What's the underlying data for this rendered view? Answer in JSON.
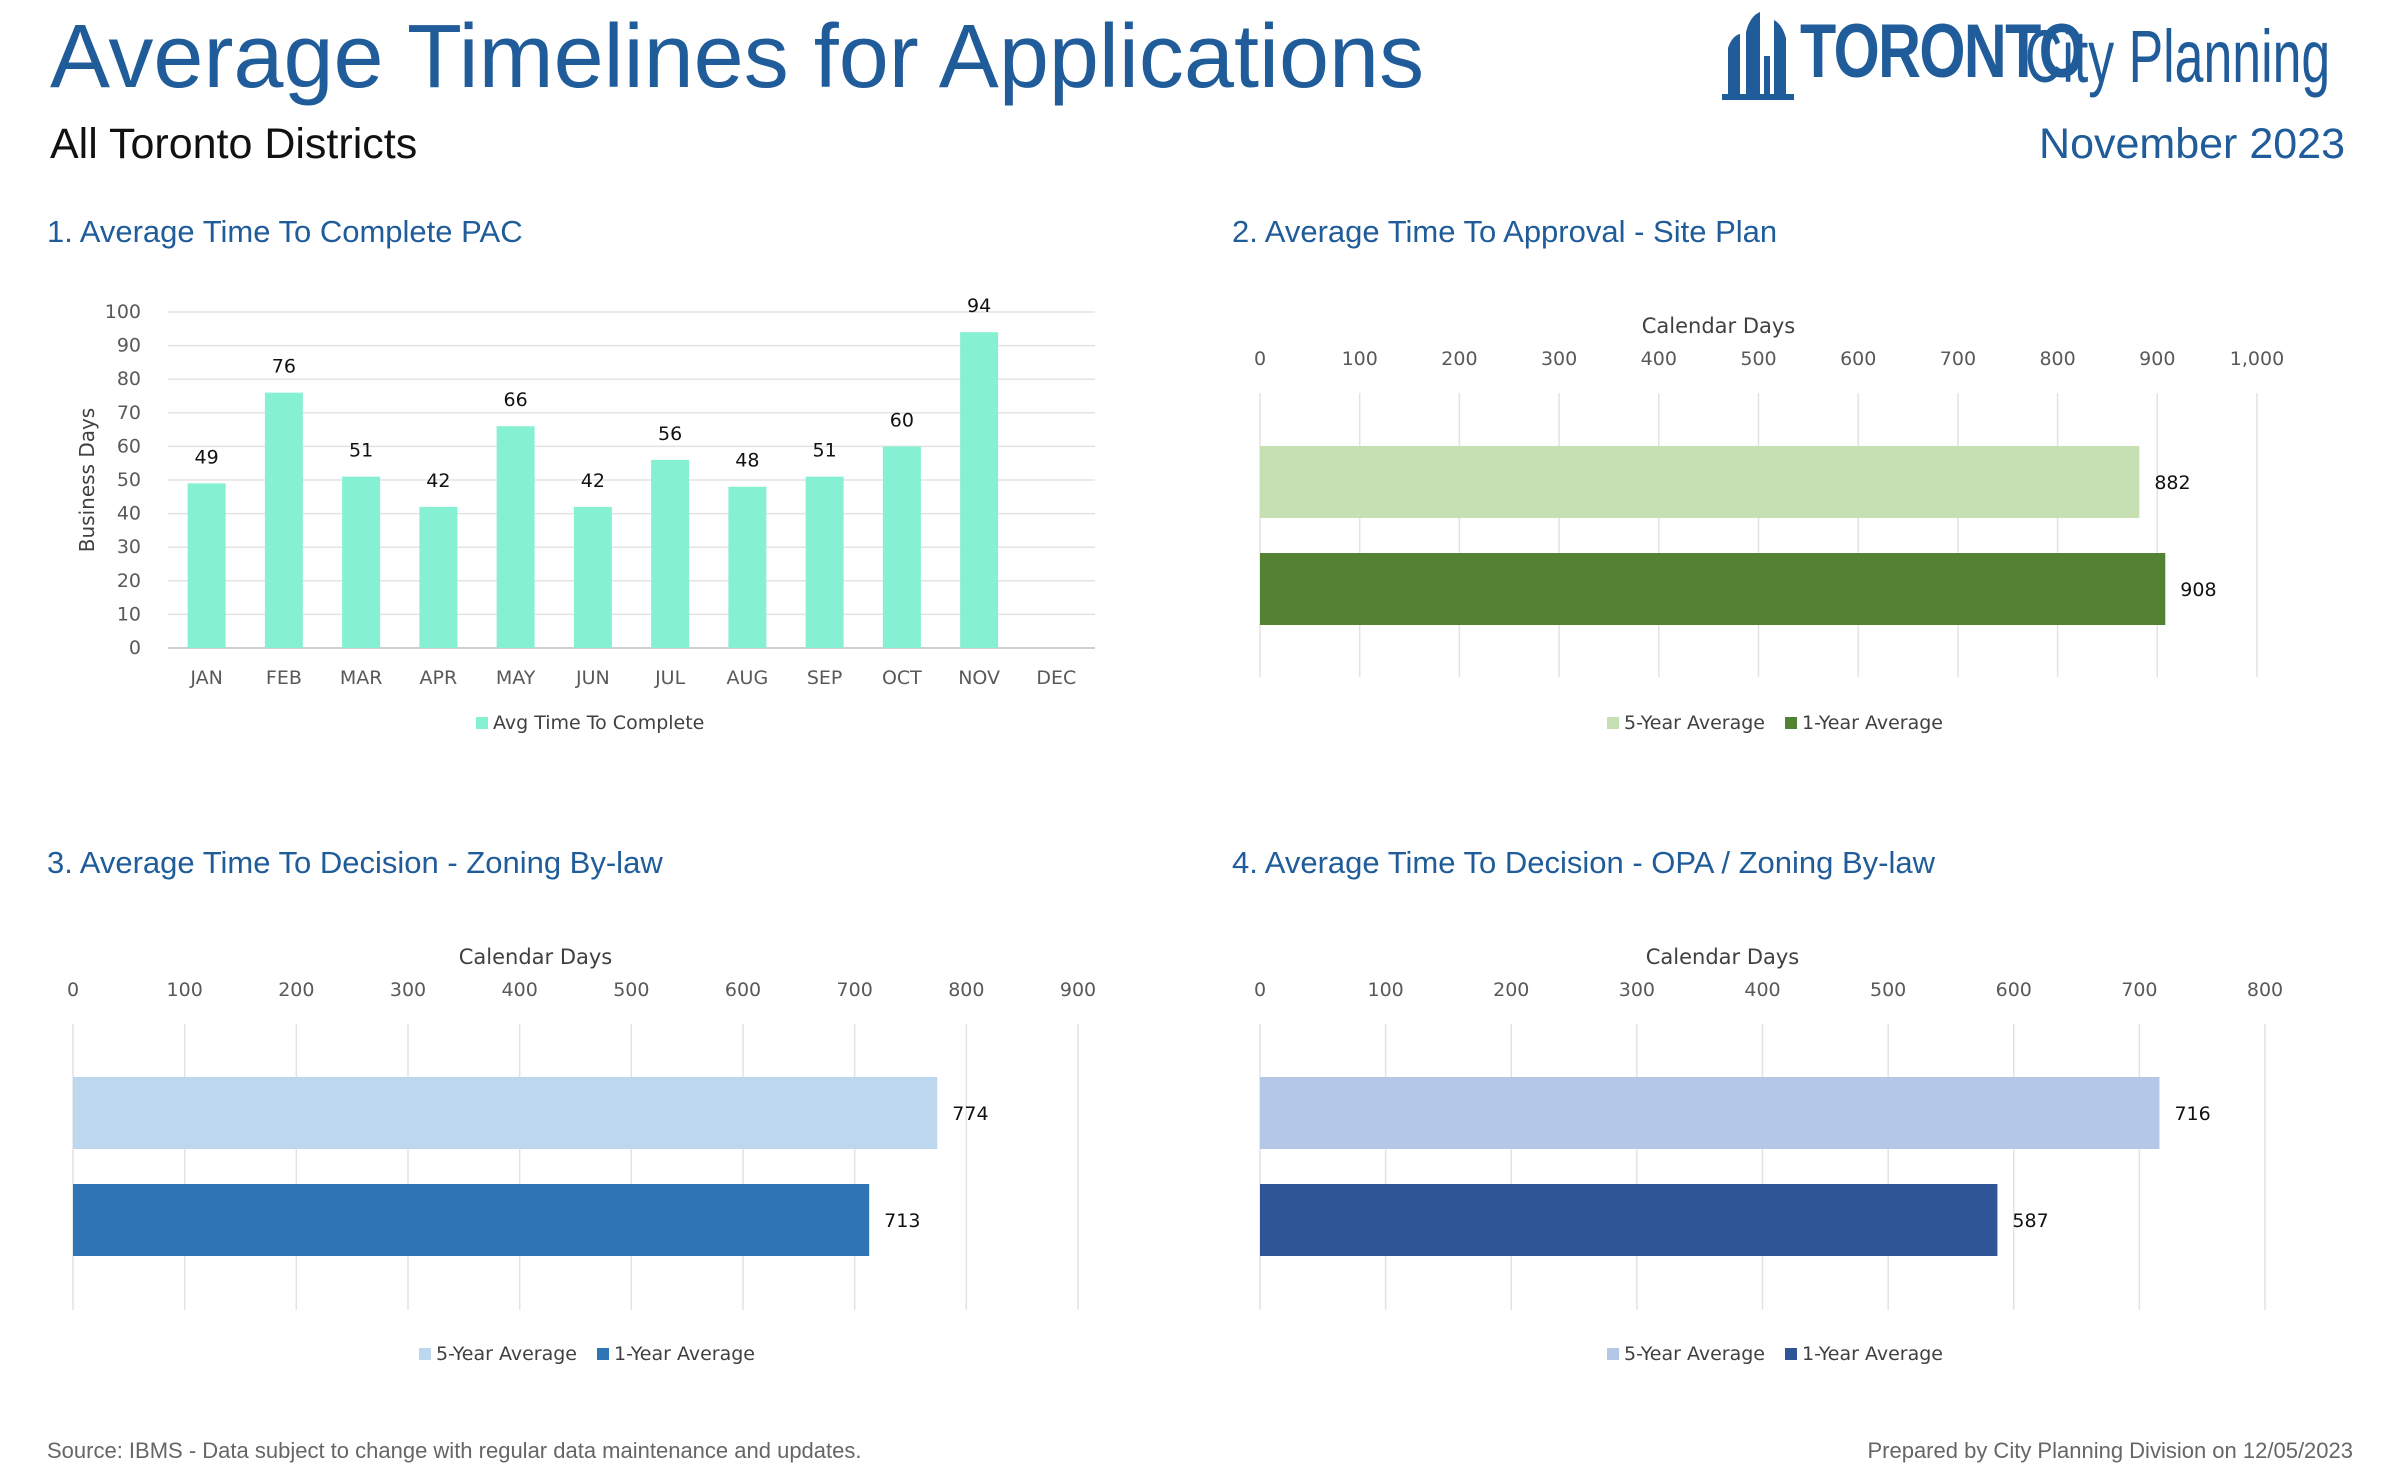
{
  "header": {
    "title": "Average Timelines for Applications",
    "subtitle": "All Toronto Districts",
    "date": "November 2023",
    "logo_name": "TORONTO",
    "logo_dept": "City Planning"
  },
  "colors": {
    "title_blue": "#1f5c99",
    "pac_bar": "#86f0d2",
    "site_5yr": "#c6e0b4",
    "site_1yr": "#548235",
    "zbl_5yr": "#bdd7ee",
    "zbl_1yr": "#2e75b6",
    "opa_5yr": "#b4c7e7",
    "opa_1yr": "#2f5597"
  },
  "footer": {
    "source": "Source: IBMS - Data subject to change with regular data maintenance and updates.",
    "prepared": "Prepared by City Planning Division on 12/05/2023"
  },
  "chart_data": [
    {
      "type": "bar",
      "title": "1. Average Time To Complete PAC",
      "categories": [
        "JAN",
        "FEB",
        "MAR",
        "APR",
        "MAY",
        "JUN",
        "JUL",
        "AUG",
        "SEP",
        "OCT",
        "NOV",
        "DEC"
      ],
      "series": [
        {
          "name": "Avg Time To Complete",
          "values": [
            49,
            76,
            51,
            42,
            66,
            42,
            56,
            48,
            51,
            60,
            94,
            null
          ]
        }
      ],
      "xlabel": "",
      "ylabel": "Business Days",
      "ylim": [
        0,
        100
      ],
      "yticks": [
        "0",
        "10",
        "20",
        "30",
        "40",
        "50",
        "60",
        "70",
        "80",
        "90",
        "100"
      ],
      "grid": true,
      "legend": "bottom"
    },
    {
      "type": "bar",
      "orientation": "horizontal",
      "title": "2. Average Time To Approval - Site Plan",
      "categories": [
        "5-Year Average",
        "1-Year Average"
      ],
      "values": [
        882,
        908
      ],
      "xlabel": "Calendar Days",
      "xlim": [
        0,
        1000
      ],
      "xticks": [
        "0",
        "100",
        "200",
        "300",
        "400",
        "500",
        "600",
        "700",
        "800",
        "900",
        "1,000"
      ],
      "grid": true,
      "legend": "bottom"
    },
    {
      "type": "bar",
      "orientation": "horizontal",
      "title": "3. Average Time To Decision - Zoning By-law",
      "categories": [
        "5-Year Average",
        "1-Year Average"
      ],
      "values": [
        774,
        713
      ],
      "xlabel": "Calendar Days",
      "xlim": [
        0,
        900
      ],
      "xticks": [
        "0",
        "100",
        "200",
        "300",
        "400",
        "500",
        "600",
        "700",
        "800",
        "900"
      ],
      "grid": true,
      "legend": "bottom"
    },
    {
      "type": "bar",
      "orientation": "horizontal",
      "title": "4. Average Time To Decision - OPA / Zoning By-law",
      "categories": [
        "5-Year Average",
        "1-Year Average"
      ],
      "values": [
        716,
        587
      ],
      "xlabel": "Calendar Days",
      "xlim": [
        0,
        800
      ],
      "xticks": [
        "0",
        "100",
        "200",
        "300",
        "400",
        "500",
        "600",
        "700",
        "800"
      ],
      "grid": true,
      "legend": "bottom"
    }
  ]
}
